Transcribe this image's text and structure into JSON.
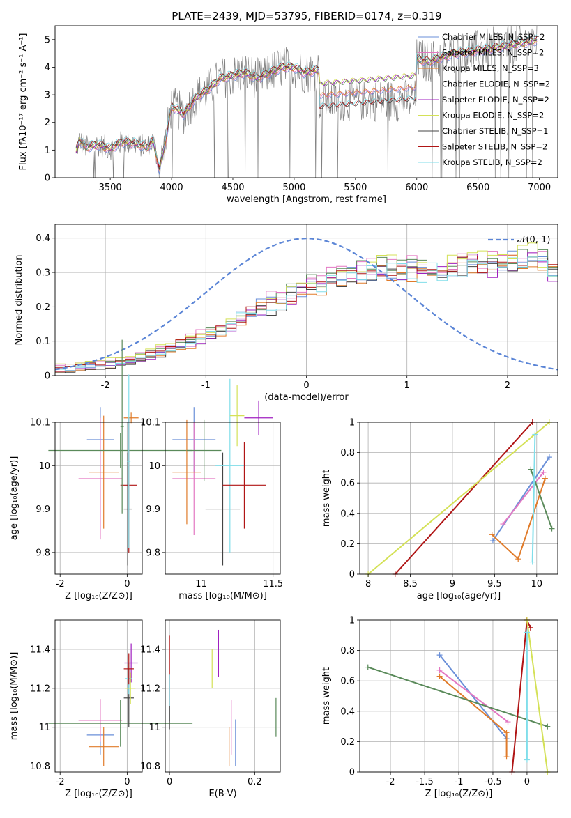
{
  "chart_data": [
    {
      "type": "line",
      "title": "PLATE=2439, MJD=53795, FIBERID=0174, z=0.319",
      "xlabel": "wavelength [Angstrom, rest frame]",
      "ylabel": "Flux [fλ10⁻¹⁷ erg cm⁻² s⁻¹ A⁻¹]",
      "xlim": [
        3050,
        7150
      ],
      "ylim": [
        0,
        5.5
      ],
      "xticks": [
        3500,
        4000,
        4500,
        5000,
        5500,
        6000,
        6500,
        7000
      ],
      "yticks": [
        0,
        1,
        2,
        3,
        4,
        5
      ],
      "grid": false,
      "legend_position": "top-right",
      "series": [
        {
          "name": "Chabrier MILES, N_SSP=2",
          "color": "#6a8fd8"
        },
        {
          "name": "Salpeter MILES, N_SSP=2",
          "color": "#e377c2"
        },
        {
          "name": "Kroupa MILES, N_SSP=3",
          "color": "#e07b2a"
        },
        {
          "name": "Chabrier ELODIE, N_SSP=2",
          "color": "#5a8a5a"
        },
        {
          "name": "Salpeter ELODIE, N_SSP=2",
          "color": "#a020c0"
        },
        {
          "name": "Kroupa ELODIE, N_SSP=2",
          "color": "#d4e157"
        },
        {
          "name": "Chabrier STELIB, N_SSP=1",
          "color": "#444444"
        },
        {
          "name": "Salpeter STELIB, N_SSP=2",
          "color": "#b01515"
        },
        {
          "name": "Kroupa STELIB, N_SSP=2",
          "color": "#80deea"
        }
      ],
      "data_color": "#808080",
      "model_anchors": {
        "x": [
          3200,
          3250,
          3300,
          3400,
          3500,
          3600,
          3700,
          3800,
          3850,
          3900,
          3950,
          4000,
          4100,
          4200,
          4300,
          4400,
          4500,
          4600,
          4700,
          4800,
          4900,
          5000,
          5080,
          5200,
          5400,
          5600,
          5800,
          5900,
          6000,
          6100,
          6300,
          6500,
          6700,
          6900,
          7000
        ],
        "y": [
          0.7,
          1.35,
          1.1,
          1.2,
          1.05,
          1.3,
          1.25,
          1.1,
          1.35,
          0.3,
          1.3,
          2.6,
          2.3,
          2.9,
          3.2,
          3.6,
          3.7,
          3.8,
          3.6,
          3.8,
          4.0,
          4.0,
          3.8,
          3.9,
          3.8,
          3.9,
          3.8,
          4.0,
          4.3,
          4.2,
          4.5,
          4.6,
          4.75,
          4.9,
          5.0
        ]
      },
      "dip_regions": [
        {
          "x": [
            5200,
            6000
          ],
          "values": {
            "MILES": 3.05,
            "ELODIE": 3.4,
            "STELIB": 2.5
          }
        }
      ]
    },
    {
      "type": "histogram",
      "xlabel": "(data-model)/error",
      "ylabel": "Normed distribution",
      "xlim": [
        -2.5,
        2.5
      ],
      "ylim": [
        0,
        0.44
      ],
      "xticks": [
        -2,
        -1,
        0,
        1,
        2
      ],
      "yticks": [
        0.0,
        0.1,
        0.2,
        0.3,
        0.4
      ],
      "grid": true,
      "legend": [
        {
          "name": "𝒩(0, 1)",
          "style": "dashed",
          "color": "#5b85d6"
        }
      ],
      "legend_position": "top-right",
      "bin_width": 0.1,
      "bin_start": -2.5,
      "base_values": [
        0.02,
        0.02,
        0.025,
        0.03,
        0.03,
        0.035,
        0.04,
        0.04,
        0.05,
        0.06,
        0.07,
        0.08,
        0.09,
        0.1,
        0.11,
        0.12,
        0.14,
        0.15,
        0.17,
        0.18,
        0.2,
        0.21,
        0.22,
        0.24,
        0.25,
        0.26,
        0.27,
        0.28,
        0.29,
        0.3,
        0.3,
        0.3,
        0.31,
        0.31,
        0.3,
        0.31,
        0.3,
        0.31,
        0.3,
        0.31,
        0.32,
        0.33,
        0.32,
        0.32,
        0.33,
        0.34,
        0.34,
        0.35,
        0.33,
        0.3
      ],
      "series_offsets": [
        0.0,
        0.012,
        -0.01,
        0.008,
        -0.006,
        0.014,
        -0.012,
        0.004,
        -0.004
      ]
    },
    {
      "type": "errorbar",
      "xlabel": "Z [log₁₀(Z/Z⊙)]",
      "ylabel": "age  [log₁₀(age/yr)]",
      "xlim": [
        -2.15,
        0.45
      ],
      "ylim": [
        9.75,
        10.1
      ],
      "xticks": [
        -2,
        0
      ],
      "yticks": [
        9.8,
        9.9,
        10.0,
        10.1
      ],
      "points": [
        {
          "x": -0.8,
          "y": 10.06,
          "xerr": 0.4,
          "yerr": 0.075,
          "color": "#6a8fd8"
        },
        {
          "x": -0.8,
          "y": 9.97,
          "xerr": 0.65,
          "yerr": 0.14,
          "color": "#e377c2"
        },
        {
          "x": -0.7,
          "y": 9.985,
          "xerr": 0.45,
          "yerr": 0.13,
          "color": "#e07b2a"
        },
        {
          "x": -0.2,
          "y": 10.035,
          "xerr": 2.15,
          "yerr": 0.04,
          "color": "#5a8a5a"
        },
        {
          "x": 0.05,
          "y": 9.955,
          "xerr": 0.25,
          "yerr": 0.155,
          "color": "#b01515"
        },
        {
          "x": 0.12,
          "y": 10.11,
          "xerr": 0.22,
          "yerr": 0.012,
          "color": "#e07b2a"
        },
        {
          "x": 0.02,
          "y": 9.9,
          "xerr": 0.12,
          "yerr": 0.13,
          "color": "#444444"
        },
        {
          "x": 0.05,
          "y": 10.01,
          "xerr": 0.05,
          "yerr": 0.2,
          "color": "#80deea"
        },
        {
          "x": -0.15,
          "y": 10.09,
          "xerr": 0.05,
          "yerr": 0.2,
          "color": "#5a8a5a"
        }
      ]
    },
    {
      "type": "errorbar",
      "xlabel": "mass [log₁₀(M/M⊙)]",
      "ylabel": "",
      "xlim": [
        10.75,
        11.55
      ],
      "ylim": [
        9.75,
        10.1
      ],
      "xticks": [
        11.0,
        11.5
      ],
      "yticks": [
        9.8,
        9.9,
        10.0,
        10.1
      ],
      "points": [
        {
          "x": 10.95,
          "y": 10.06,
          "xerr": 0.15,
          "yerr": 0.075,
          "color": "#6a8fd8"
        },
        {
          "x": 10.95,
          "y": 9.97,
          "xerr": 0.15,
          "yerr": 0.13,
          "color": "#e377c2"
        },
        {
          "x": 10.9,
          "y": 9.985,
          "xerr": 0.1,
          "yerr": 0.12,
          "color": "#e07b2a"
        },
        {
          "x": 11.02,
          "y": 10.035,
          "xerr": 0.12,
          "yerr": 0.07,
          "color": "#5a8a5a"
        },
        {
          "x": 11.15,
          "y": 9.9,
          "xerr": 0.12,
          "yerr": 0.13,
          "color": "#444444"
        },
        {
          "x": 11.2,
          "y": 10.0,
          "xerr": 0.1,
          "yerr": 0.2,
          "color": "#80deea"
        },
        {
          "x": 11.3,
          "y": 9.955,
          "xerr": 0.15,
          "yerr": 0.1,
          "color": "#b01515"
        },
        {
          "x": 11.4,
          "y": 10.11,
          "xerr": 0.1,
          "yerr": 0.04,
          "color": "#a020c0"
        },
        {
          "x": 11.25,
          "y": 10.115,
          "xerr": 0.05,
          "yerr": 0.07,
          "color": "#d4e157"
        }
      ]
    },
    {
      "type": "line",
      "xlabel": "age  [log₁₀(age/yr)]",
      "ylabel": "mass weight",
      "xlim": [
        7.9,
        10.25
      ],
      "ylim": [
        0.0,
        1.0
      ],
      "xticks": [
        8.0,
        8.5,
        9.0,
        9.5,
        10.0
      ],
      "yticks": [
        0.0,
        0.2,
        0.4,
        0.6,
        0.8,
        1.0
      ],
      "grid": true,
      "series": [
        {
          "color": "#6a8fd8",
          "x": [
            9.48,
            10.15
          ],
          "y": [
            0.22,
            0.77
          ]
        },
        {
          "color": "#e377c2",
          "x": [
            9.6,
            10.08
          ],
          "y": [
            0.33,
            0.67
          ]
        },
        {
          "color": "#e07b2a",
          "x": [
            9.47,
            9.78,
            10.1
          ],
          "y": [
            0.26,
            0.1,
            0.63
          ]
        },
        {
          "color": "#5a8a5a",
          "x": [
            9.93,
            10.18
          ],
          "y": [
            0.69,
            0.3
          ]
        },
        {
          "color": "#b01515",
          "x": [
            8.32,
            9.95
          ],
          "y": [
            0.0,
            1.0
          ]
        },
        {
          "color": "#d4e157",
          "x": [
            8.0,
            10.15
          ],
          "y": [
            0.0,
            1.0
          ]
        },
        {
          "color": "#80deea",
          "x": [
            9.98,
            9.95
          ],
          "y": [
            0.92,
            0.08
          ]
        }
      ]
    },
    {
      "type": "errorbar",
      "xlabel": "Z [log₁₀(Z/Z⊙)]",
      "ylabel": "mass [log₁₀(M/M⊙)]",
      "xlim": [
        -2.15,
        0.45
      ],
      "ylim": [
        10.77,
        11.55
      ],
      "xticks": [
        -2,
        0
      ],
      "yticks": [
        10.8,
        11.0,
        11.2,
        11.4
      ],
      "points": [
        {
          "x": -0.8,
          "y": 10.96,
          "xerr": 0.4,
          "yerr": 0.1,
          "color": "#6a8fd8"
        },
        {
          "x": -0.8,
          "y": 11.035,
          "xerr": 0.65,
          "yerr": 0.11,
          "color": "#e377c2"
        },
        {
          "x": -0.7,
          "y": 10.9,
          "xerr": 0.45,
          "yerr": 0.1,
          "color": "#e07b2a"
        },
        {
          "x": -0.2,
          "y": 11.02,
          "xerr": 2.15,
          "yerr": 0.12,
          "color": "#5a8a5a"
        },
        {
          "x": 0.05,
          "y": 11.15,
          "xerr": 0.15,
          "yerr": 0.15,
          "color": "#444444"
        },
        {
          "x": 0.12,
          "y": 11.33,
          "xerr": 0.2,
          "yerr": 0.1,
          "color": "#a020c0"
        },
        {
          "x": 0.05,
          "y": 11.25,
          "xerr": 0.1,
          "yerr": 0.08,
          "color": "#80deea"
        },
        {
          "x": 0.1,
          "y": 11.2,
          "xerr": 0.15,
          "yerr": 0.08,
          "color": "#d4e157"
        },
        {
          "x": 0.05,
          "y": 11.3,
          "xerr": 0.15,
          "yerr": 0.08,
          "color": "#b01515"
        }
      ]
    },
    {
      "type": "errorbar",
      "xlabel": "E(B-V)",
      "ylabel": "",
      "xlim": [
        -0.01,
        0.26
      ],
      "ylim": [
        10.77,
        11.55
      ],
      "xticks": [
        0.0,
        0.2
      ],
      "yticks": [
        10.8,
        11.0,
        11.2,
        11.4
      ],
      "points": [
        {
          "x": 0.0,
          "y": 11.25,
          "xerr": 0,
          "yerr": 0.22,
          "color": "#b01515"
        },
        {
          "x": 0.0,
          "y": 11.15,
          "xerr": 0,
          "yerr": 0.12,
          "color": "#80deea"
        },
        {
          "x": 0.0,
          "y": 11.05,
          "xerr": 0,
          "yerr": 0.06,
          "color": "#444444"
        },
        {
          "x": 0.1,
          "y": 11.3,
          "xerr": 0,
          "yerr": 0.1,
          "color": "#d4e157"
        },
        {
          "x": 0.115,
          "y": 11.38,
          "xerr": 0,
          "yerr": 0.12,
          "color": "#a020c0"
        },
        {
          "x": 0.14,
          "y": 10.9,
          "xerr": 0,
          "yerr": 0.1,
          "color": "#e07b2a"
        },
        {
          "x": 0.145,
          "y": 11.0,
          "xerr": 0,
          "yerr": 0.14,
          "color": "#e377c2"
        },
        {
          "x": 0.155,
          "y": 10.92,
          "xerr": 0,
          "yerr": 0.12,
          "color": "#6a8fd8"
        },
        {
          "x": 0.25,
          "y": 11.05,
          "xerr": 0,
          "yerr": 0.1,
          "color": "#5a8a5a"
        }
      ]
    },
    {
      "type": "line",
      "xlabel": "Z [log₁₀(Z/Z⊙)]",
      "ylabel": "mass weight",
      "xlim": [
        -2.45,
        0.45
      ],
      "ylim": [
        0.0,
        1.0
      ],
      "xticks": [
        -2.0,
        -1.5,
        -1.0,
        -0.5,
        0.0
      ],
      "yticks": [
        0.0,
        0.2,
        0.4,
        0.6,
        0.8,
        1.0
      ],
      "grid": true,
      "series": [
        {
          "color": "#6a8fd8",
          "x": [
            -1.28,
            -0.3
          ],
          "y": [
            0.77,
            0.22
          ]
        },
        {
          "color": "#e377c2",
          "x": [
            -1.28,
            -0.28
          ],
          "y": [
            0.67,
            0.33
          ]
        },
        {
          "color": "#e07b2a",
          "x": [
            -1.28,
            -0.3,
            -0.3
          ],
          "y": [
            0.63,
            0.26,
            0.1
          ]
        },
        {
          "color": "#5a8a5a",
          "x": [
            -2.33,
            0.3
          ],
          "y": [
            0.69,
            0.3
          ]
        },
        {
          "color": "#b01515",
          "x": [
            -0.22,
            0.0,
            0.05
          ],
          "y": [
            0.0,
            1.0,
            0.95
          ]
        },
        {
          "color": "#d4e157",
          "x": [
            0.0,
            0.3
          ],
          "y": [
            1.0,
            0.0
          ]
        },
        {
          "color": "#80deea",
          "x": [
            0.0,
            0.0
          ],
          "y": [
            0.92,
            0.08
          ]
        }
      ]
    }
  ]
}
